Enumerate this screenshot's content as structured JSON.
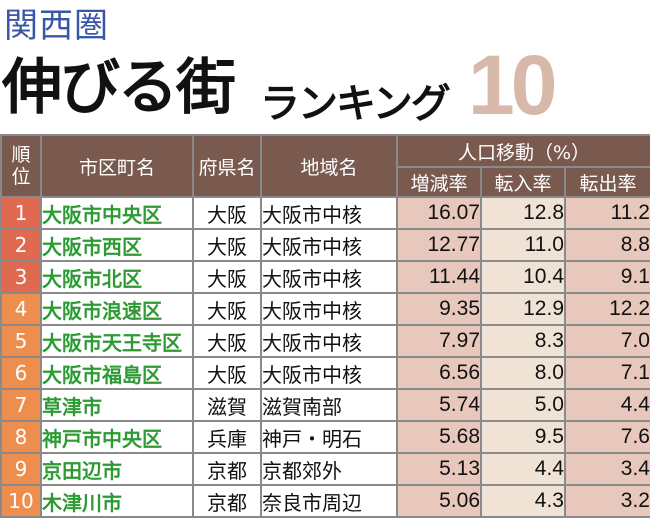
{
  "title": {
    "region": "関西圏",
    "main": "伸びる街",
    "sub": "ランキング",
    "number": "10"
  },
  "table": {
    "headers": {
      "rank": "順\n位",
      "city": "市区町名",
      "prefecture": "府県名",
      "area": "地域名",
      "migration_group": "人口移動（%）",
      "change_rate": "増減率",
      "in_rate": "転入率",
      "out_rate": "転出率"
    },
    "rows": [
      {
        "rank": "1",
        "city": "大阪市中央区",
        "prefecture": "大阪",
        "area": "大阪市中核",
        "change": "16.07",
        "in": "12.8",
        "out": "11.2"
      },
      {
        "rank": "2",
        "city": "大阪市西区",
        "prefecture": "大阪",
        "area": "大阪市中核",
        "change": "12.77",
        "in": "11.0",
        "out": "8.8"
      },
      {
        "rank": "3",
        "city": "大阪市北区",
        "prefecture": "大阪",
        "area": "大阪市中核",
        "change": "11.44",
        "in": "10.4",
        "out": "9.1"
      },
      {
        "rank": "4",
        "city": "大阪市浪速区",
        "prefecture": "大阪",
        "area": "大阪市中核",
        "change": "9.35",
        "in": "12.9",
        "out": "12.2"
      },
      {
        "rank": "5",
        "city": "大阪市天王寺区",
        "prefecture": "大阪",
        "area": "大阪市中核",
        "change": "7.97",
        "in": "8.3",
        "out": "7.0"
      },
      {
        "rank": "6",
        "city": "大阪市福島区",
        "prefecture": "大阪",
        "area": "大阪市中核",
        "change": "6.56",
        "in": "8.0",
        "out": "7.1"
      },
      {
        "rank": "7",
        "city": "草津市",
        "prefecture": "滋賀",
        "area": "滋賀南部",
        "change": "5.74",
        "in": "5.0",
        "out": "4.4"
      },
      {
        "rank": "8",
        "city": "神戸市中央区",
        "prefecture": "兵庫",
        "area": "神戸・明石",
        "change": "5.68",
        "in": "9.5",
        "out": "7.6"
      },
      {
        "rank": "9",
        "city": "京田辺市",
        "prefecture": "京都",
        "area": "京都郊外",
        "change": "5.13",
        "in": "4.4",
        "out": "3.4"
      },
      {
        "rank": "10",
        "city": "木津川市",
        "prefecture": "京都",
        "area": "奈良市周辺",
        "change": "5.06",
        "in": "4.3",
        "out": "3.2"
      }
    ]
  },
  "colors": {
    "rank_top3": "#e06a50",
    "rank_rest": "#ee8e4e",
    "city_text": "#2e9a34",
    "header_bg": "#7a5a4e",
    "region_text": "#3a56a8",
    "number_text": "#d8b8a8"
  }
}
